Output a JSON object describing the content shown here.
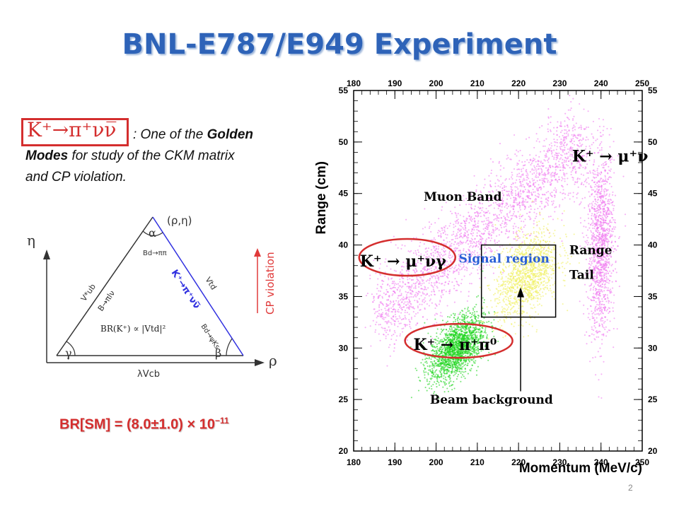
{
  "slide": {
    "title": "BNL-E787/E949 Experiment",
    "page_number": "2"
  },
  "intro": {
    "mode": "K⁺→π⁺νν̅",
    "text_1": ": One of the ",
    "text_2": "Golden",
    "text_3": "Modes",
    "text_4": " for study of the CKM matrix",
    "text_5": "and CP violation."
  },
  "triangle": {
    "eta_label": "η",
    "rho_label": "ρ",
    "apex_label": "(ρ,η)",
    "alpha": "α",
    "beta": "β",
    "gamma": "γ",
    "left_side": "V*ub",
    "left_process": "B→πlν",
    "right_side": "Vtd",
    "right_process": "K⁺→π⁺νν̅",
    "apex_process": "Bd→ππ",
    "beta_process": "Bd→ψKs",
    "bottom_side": "λVcb",
    "cp_violation": "CP violation",
    "br_relation": "BR(K⁺) ∝ |Vtd|²",
    "colors": {
      "line": "#333333",
      "blue": "#3030e0",
      "red": "#e03a3a"
    }
  },
  "br_sm": {
    "prefix": "BR[SM] = (8.0±1.0) × 10",
    "exponent": "−11"
  },
  "chart_data": {
    "type": "scatter",
    "xlabel": "Momentum (MeV/c)",
    "ylabel": "Range (cm)",
    "xlim": [
      180,
      250
    ],
    "ylim": [
      20,
      55
    ],
    "x_ticks": [
      180,
      190,
      200,
      210,
      220,
      230,
      240,
      250
    ],
    "y_ticks": [
      20,
      25,
      30,
      35,
      40,
      45,
      50,
      55
    ],
    "grid": false,
    "regions": [
      {
        "name": "Muon Band",
        "color": "#f07cf0",
        "from": [
          186,
          33
        ],
        "to": [
          236,
          50
        ],
        "width": 5
      },
      {
        "name": "Range Tail",
        "color": "#f07cf0",
        "center": [
          240,
          40
        ],
        "spread": [
          3,
          8
        ]
      },
      {
        "name": "K⁺ → π⁺π⁰",
        "color": "#1fd61f",
        "center": [
          205,
          30
        ],
        "spread": [
          6,
          2.5
        ]
      },
      {
        "name": "K⁺ → μ⁺νγ",
        "color": "#f0f060",
        "center": [
          222,
          37
        ],
        "spread": [
          7,
          3.5
        ]
      }
    ],
    "signal_region": {
      "x": [
        211,
        229
      ],
      "y": [
        33,
        40
      ]
    },
    "labels": {
      "muon_band": "Muon Band",
      "signal_region": "Signal region",
      "range_tail_1": "Range",
      "range_tail_2": "Tail",
      "beam_background": "Beam background",
      "k_mu_nu": "K⁺ → μ⁺ν",
      "k_mu_nu_gamma": "K⁺ → μ⁺νγ",
      "k_pi_pi0": "K⁺ → π⁺π⁰"
    },
    "colors": {
      "signal_label": "#2a5fd6",
      "ellipse": "#d42e2e",
      "axis": "#000000"
    }
  }
}
